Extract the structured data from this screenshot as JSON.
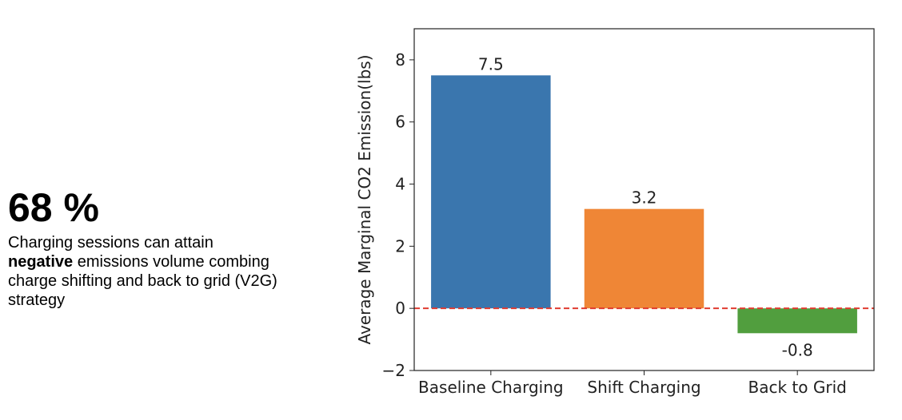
{
  "stat": {
    "value": "68 %",
    "desc_pre": "Charging sessions can attain ",
    "desc_bold": "negative",
    "desc_post": " emissions volume combing charge shifting and back to grid (V2G) strategy"
  },
  "chart_data": {
    "type": "bar",
    "categories": [
      "Baseline Charging",
      "Shift Charging",
      "Back to Grid"
    ],
    "values": [
      7.5,
      3.2,
      -0.8
    ],
    "data_labels": [
      "7.5",
      "3.2",
      "-0.8"
    ],
    "colors": [
      "#3a76ae",
      "#ef8636",
      "#519e3e"
    ],
    "title": "",
    "xlabel": "",
    "ylabel": "Average Marginal CO2 Emission(lbs)",
    "ylim": [
      -2,
      9
    ],
    "yticks": [
      -2,
      0,
      2,
      4,
      6,
      8
    ],
    "ytick_labels": [
      "−2",
      "0",
      "2",
      "4",
      "6",
      "8"
    ],
    "reference_line": {
      "y": 0,
      "color": "#e03c31",
      "style": "dashed"
    },
    "grid": false,
    "legend": "none"
  }
}
